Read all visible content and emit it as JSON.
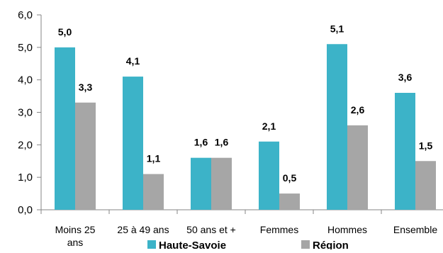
{
  "colors": {
    "series_1": "#3cb3c8",
    "series_2": "#a6a6a6",
    "axis": "#868686"
  },
  "chart_data": {
    "type": "bar",
    "categories": [
      [
        "Moins 25",
        "ans"
      ],
      [
        "25 à 49 ans"
      ],
      [
        "50 ans et +"
      ],
      [
        "Femmes"
      ],
      [
        "Hommes"
      ],
      [
        "Ensemble"
      ]
    ],
    "series": [
      {
        "name": "Haute-Savoie",
        "values": [
          5.0,
          4.1,
          1.6,
          2.1,
          5.1,
          3.6
        ],
        "labels": [
          "5,0",
          "4,1",
          "1,6",
          "2,1",
          "5,1",
          "3,6"
        ]
      },
      {
        "name": "Région",
        "values": [
          3.3,
          1.1,
          1.6,
          0.5,
          2.6,
          1.5
        ],
        "labels": [
          "3,3",
          "1,1",
          "1,6",
          "0,5",
          "2,6",
          "1,5"
        ]
      }
    ],
    "ylim": [
      0,
      6
    ],
    "yticks": [
      0,
      1,
      2,
      3,
      4,
      5,
      6
    ],
    "ytick_labels": [
      "0,0",
      "1,0",
      "2,0",
      "3,0",
      "4,0",
      "5,0",
      "6,0"
    ],
    "grid": false,
    "legend_position": "bottom"
  }
}
